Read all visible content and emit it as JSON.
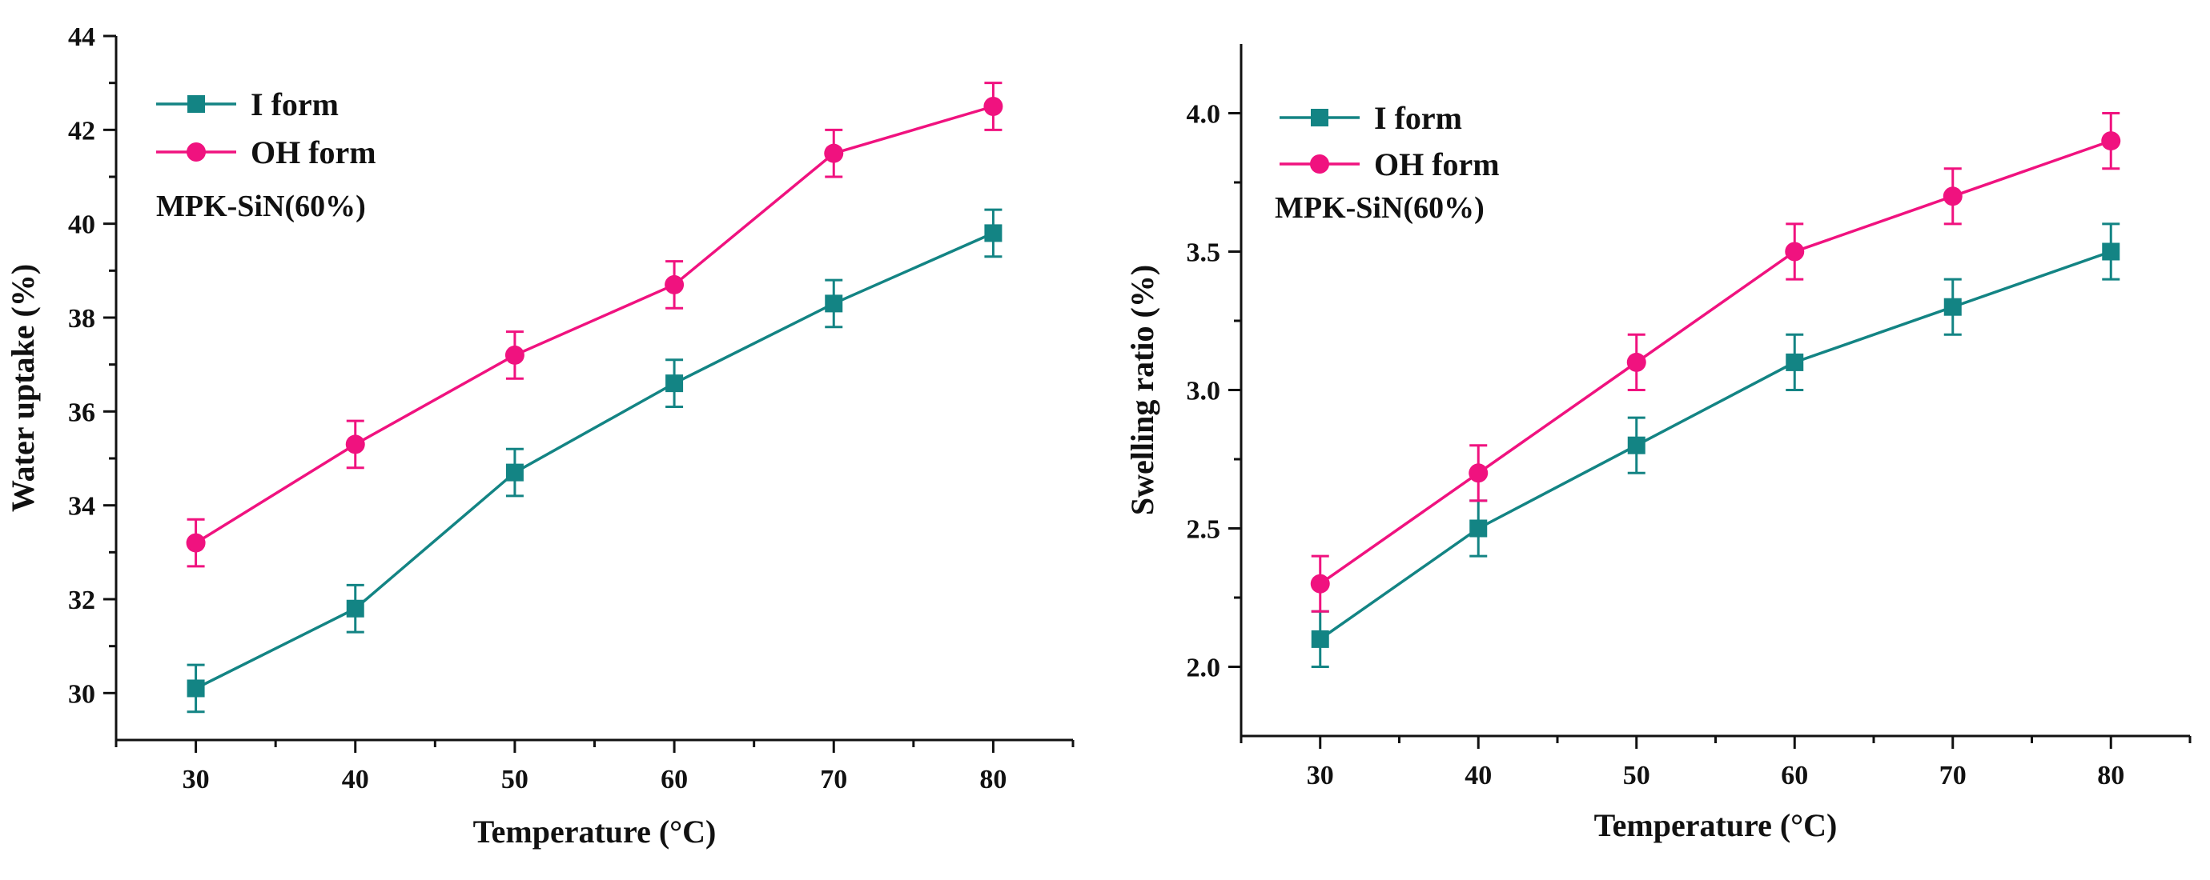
{
  "colors": {
    "i_form": "#138484",
    "oh_form": "#F0127F",
    "axis": "#111111"
  },
  "chart_data": [
    {
      "type": "line",
      "title": "",
      "xlabel": "Temperature (°C)",
      "ylabel": "Water uptake (%)",
      "xlim": [
        25,
        85
      ],
      "ylim": [
        29,
        44
      ],
      "xticks": [
        30,
        40,
        50,
        60,
        70,
        80
      ],
      "xtick_labels": [
        "30",
        "40",
        "50",
        "60",
        "70",
        "80"
      ],
      "yticks": [
        30,
        32,
        34,
        36,
        38,
        40,
        42,
        44
      ],
      "ytick_labels": [
        "30",
        "32",
        "34",
        "36",
        "38",
        "40",
        "42",
        "44"
      ],
      "annotation": "MPK-SiN(60%)",
      "legend_position": "top-left",
      "x": [
        30,
        40,
        50,
        60,
        70,
        80
      ],
      "series": [
        {
          "name": "I form",
          "marker": "square",
          "color": "#138484",
          "values": [
            30.1,
            31.8,
            34.7,
            36.6,
            38.3,
            39.8
          ],
          "errors": [
            0.5,
            0.5,
            0.5,
            0.5,
            0.5,
            0.5
          ]
        },
        {
          "name": "OH form",
          "marker": "circle",
          "color": "#F0127F",
          "values": [
            33.2,
            35.3,
            37.2,
            38.7,
            41.5,
            42.5
          ],
          "errors": [
            0.5,
            0.5,
            0.5,
            0.5,
            0.5,
            0.5
          ]
        }
      ]
    },
    {
      "type": "line",
      "title": "",
      "xlabel": "Temperature (°C)",
      "ylabel": "Swelling ratio (%)",
      "xlim": [
        25,
        85
      ],
      "ylim": [
        1.75,
        4.25
      ],
      "xticks": [
        30,
        40,
        50,
        60,
        70,
        80
      ],
      "xtick_labels": [
        "30",
        "40",
        "50",
        "60",
        "70",
        "80"
      ],
      "yticks": [
        2.0,
        2.5,
        3.0,
        3.5,
        4.0
      ],
      "ytick_labels": [
        "2.0",
        "2.5",
        "3.0",
        "3.5",
        "4.0"
      ],
      "annotation": "MPK-SiN(60%)",
      "legend_position": "top-left",
      "x": [
        30,
        40,
        50,
        60,
        70,
        80
      ],
      "series": [
        {
          "name": "I form",
          "marker": "square",
          "color": "#138484",
          "values": [
            2.1,
            2.5,
            2.8,
            3.1,
            3.3,
            3.5
          ],
          "errors": [
            0.1,
            0.1,
            0.1,
            0.1,
            0.1,
            0.1
          ]
        },
        {
          "name": "OH form",
          "marker": "circle",
          "color": "#F0127F",
          "values": [
            2.3,
            2.7,
            3.1,
            3.5,
            3.7,
            3.9
          ],
          "errors": [
            0.1,
            0.1,
            0.1,
            0.1,
            0.1,
            0.1
          ]
        }
      ]
    }
  ]
}
